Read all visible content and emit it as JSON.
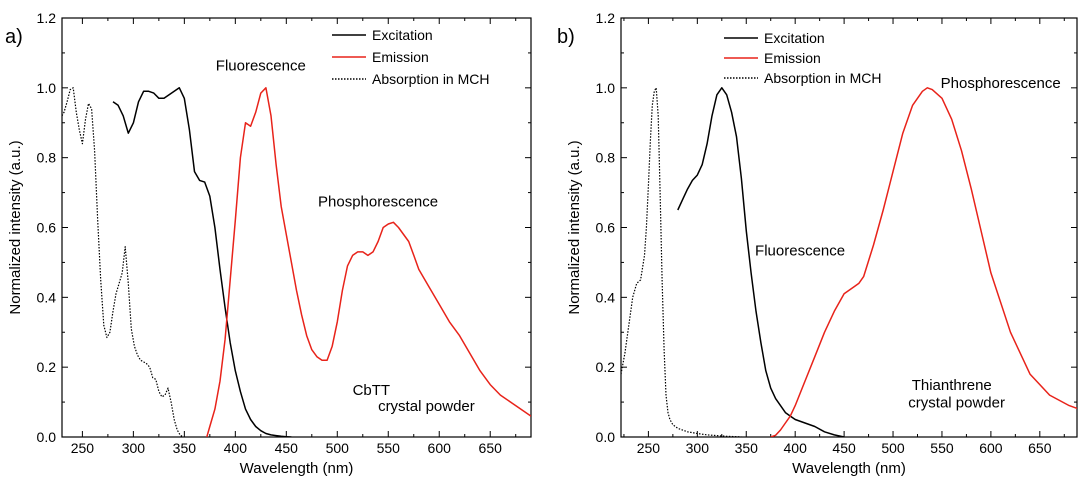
{
  "colors": {
    "excitation": "#000000",
    "emission": "#e8231a",
    "absorption": "#000000",
    "axis": "#000000"
  },
  "chart_data": [
    {
      "type": "line",
      "panel_label": "a)",
      "xlabel": "Wavelength (nm)",
      "ylabel": "Normalized intensity (a.u.)",
      "xlim": [
        230,
        690
      ],
      "ylim": [
        0,
        1.2
      ],
      "xticks": [
        "250",
        "300",
        "350",
        "400",
        "450",
        "500",
        "550",
        "600",
        "650"
      ],
      "yticks": [
        "0.0",
        "0.2",
        "0.4",
        "0.6",
        "0.8",
        "1.0",
        "1.2"
      ],
      "grid": false,
      "legend": {
        "position": "top-right",
        "entries": [
          "Excitation",
          "Emission",
          "Absorption in MCH"
        ]
      },
      "annotations": [
        {
          "text": "Fluorescence",
          "x": 425,
          "y": 1.05
        },
        {
          "text": "Phosphorescence",
          "x": 540,
          "y": 0.66
        },
        {
          "text": "CbTT",
          "x": 515,
          "y": 0.12
        },
        {
          "text": "crystal powder",
          "x": 540,
          "y": 0.075
        }
      ],
      "series": [
        {
          "name": "Excitation",
          "style": "solid",
          "color": "#000000",
          "x": [
            280,
            285,
            290,
            295,
            300,
            305,
            310,
            315,
            320,
            325,
            330,
            335,
            340,
            345,
            350,
            355,
            360,
            365,
            370,
            375,
            380,
            385,
            390,
            395,
            400,
            405,
            410,
            415,
            420,
            425,
            430,
            435,
            440,
            445,
            450,
            455
          ],
          "y": [
            0.96,
            0.95,
            0.92,
            0.87,
            0.9,
            0.96,
            0.99,
            0.99,
            0.985,
            0.97,
            0.97,
            0.98,
            0.99,
            1.0,
            0.97,
            0.88,
            0.76,
            0.735,
            0.73,
            0.69,
            0.6,
            0.48,
            0.37,
            0.27,
            0.19,
            0.13,
            0.08,
            0.05,
            0.03,
            0.018,
            0.01,
            0.006,
            0.004,
            0.002,
            0.001,
            0.0
          ]
        },
        {
          "name": "Emission",
          "style": "solid",
          "color": "#e8231a",
          "x": [
            372,
            375,
            380,
            385,
            390,
            395,
            400,
            405,
            410,
            415,
            420,
            425,
            430,
            435,
            440,
            445,
            450,
            455,
            460,
            465,
            470,
            475,
            480,
            485,
            490,
            495,
            500,
            505,
            510,
            515,
            520,
            525,
            530,
            535,
            540,
            545,
            550,
            555,
            560,
            565,
            570,
            575,
            580,
            590,
            600,
            610,
            620,
            630,
            640,
            650,
            660,
            670,
            680,
            690
          ],
          "y": [
            0.0,
            0.03,
            0.08,
            0.16,
            0.28,
            0.45,
            0.62,
            0.8,
            0.9,
            0.89,
            0.93,
            0.985,
            1.0,
            0.92,
            0.78,
            0.66,
            0.58,
            0.5,
            0.42,
            0.35,
            0.29,
            0.25,
            0.23,
            0.22,
            0.22,
            0.26,
            0.33,
            0.42,
            0.49,
            0.52,
            0.53,
            0.53,
            0.52,
            0.53,
            0.56,
            0.6,
            0.61,
            0.615,
            0.6,
            0.58,
            0.56,
            0.52,
            0.48,
            0.43,
            0.38,
            0.33,
            0.29,
            0.24,
            0.19,
            0.15,
            0.12,
            0.1,
            0.08,
            0.06
          ]
        },
        {
          "name": "Absorption in MCH",
          "style": "dotted",
          "color": "#000000",
          "x": [
            230,
            232,
            235,
            238,
            241,
            244,
            247,
            250,
            253,
            256,
            259,
            262,
            265,
            268,
            271,
            274,
            277,
            280,
            283,
            286,
            289,
            292,
            295,
            298,
            301,
            304,
            307,
            310,
            313,
            316,
            319,
            322,
            325,
            328,
            331,
            334,
            337,
            340,
            343,
            346,
            349
          ],
          "y": [
            0.92,
            0.93,
            0.96,
            0.995,
            1.0,
            0.93,
            0.88,
            0.84,
            0.91,
            0.955,
            0.94,
            0.82,
            0.62,
            0.45,
            0.32,
            0.285,
            0.3,
            0.36,
            0.41,
            0.44,
            0.47,
            0.545,
            0.44,
            0.31,
            0.26,
            0.235,
            0.22,
            0.215,
            0.21,
            0.2,
            0.17,
            0.165,
            0.13,
            0.115,
            0.12,
            0.14,
            0.1,
            0.05,
            0.02,
            0.005,
            0.0
          ]
        }
      ]
    },
    {
      "type": "line",
      "panel_label": "b)",
      "xlabel": "Wavelength (nm)",
      "ylabel": "Normalized intensity (a.u.)",
      "xlim": [
        222,
        688
      ],
      "ylim": [
        0,
        1.2
      ],
      "xticks": [
        "250",
        "300",
        "350",
        "400",
        "450",
        "500",
        "550",
        "600",
        "650"
      ],
      "yticks": [
        "0.0",
        "0.2",
        "0.4",
        "0.6",
        "0.8",
        "1.0",
        "1.2"
      ],
      "grid": false,
      "legend": {
        "position": "top-left",
        "entries": [
          "Excitation",
          "Emission",
          "Absorption in MCH"
        ]
      },
      "annotations": [
        {
          "text": "Phosphorescence",
          "x": 610,
          "y": 1.0
        },
        {
          "text": "Fluorescence",
          "x": 405,
          "y": 0.52
        },
        {
          "text": "Thianthrene",
          "x": 560,
          "y": 0.135
        },
        {
          "text": "crystal powder",
          "x": 565,
          "y": 0.085
        }
      ],
      "series": [
        {
          "name": "Excitation",
          "style": "solid",
          "color": "#000000",
          "x": [
            280,
            285,
            290,
            295,
            300,
            305,
            310,
            315,
            320,
            325,
            330,
            335,
            340,
            345,
            350,
            355,
            360,
            365,
            370,
            375,
            380,
            385,
            390,
            395,
            400,
            410,
            420,
            430,
            440,
            450
          ],
          "y": [
            0.65,
            0.68,
            0.71,
            0.735,
            0.75,
            0.78,
            0.84,
            0.92,
            0.98,
            1.0,
            0.98,
            0.93,
            0.86,
            0.74,
            0.59,
            0.47,
            0.36,
            0.27,
            0.19,
            0.14,
            0.11,
            0.09,
            0.07,
            0.06,
            0.05,
            0.04,
            0.03,
            0.015,
            0.006,
            0.0
          ]
        },
        {
          "name": "Emission",
          "style": "solid",
          "color": "#e8231a",
          "x": [
            375,
            380,
            385,
            390,
            395,
            400,
            410,
            420,
            430,
            440,
            450,
            460,
            465,
            470,
            480,
            490,
            500,
            510,
            520,
            530,
            535,
            540,
            550,
            560,
            570,
            580,
            590,
            600,
            620,
            640,
            660,
            680,
            690
          ],
          "y": [
            0.0,
            0.005,
            0.02,
            0.04,
            0.06,
            0.09,
            0.16,
            0.23,
            0.3,
            0.36,
            0.41,
            0.43,
            0.44,
            0.46,
            0.55,
            0.65,
            0.76,
            0.87,
            0.95,
            0.99,
            1.0,
            0.995,
            0.97,
            0.91,
            0.82,
            0.71,
            0.59,
            0.47,
            0.3,
            0.18,
            0.12,
            0.09,
            0.08
          ]
        },
        {
          "name": "Absorption in MCH",
          "style": "dotted",
          "color": "#000000",
          "x": [
            222,
            226,
            230,
            234,
            238,
            242,
            246,
            248,
            250,
            252,
            254,
            256,
            258,
            260,
            262,
            264,
            266,
            268,
            270,
            272,
            275,
            280,
            290,
            300,
            310,
            320,
            330,
            340,
            345
          ],
          "y": [
            0.18,
            0.24,
            0.32,
            0.4,
            0.44,
            0.45,
            0.52,
            0.6,
            0.72,
            0.85,
            0.95,
            0.99,
            1.0,
            0.92,
            0.7,
            0.45,
            0.25,
            0.12,
            0.07,
            0.05,
            0.035,
            0.025,
            0.015,
            0.01,
            0.006,
            0.004,
            0.002,
            0.001,
            0.0
          ]
        }
      ]
    }
  ]
}
